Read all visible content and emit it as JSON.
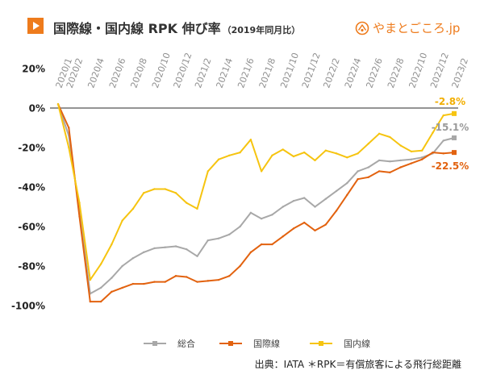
{
  "header": {
    "play_icon": "play-icon",
    "logo_icon": "yamatogokoro-logo-icon",
    "logo_text": "やまとごころ.jp"
  },
  "colors": {
    "accent": "#ee7b1c",
    "title_text": "#333333",
    "zero_line": "#555555"
  },
  "chart_data": {
    "type": "line",
    "title": "国際線・国内線 RPK 伸び率",
    "subtitle": "（2019年同月比）",
    "x": [
      "2020/1",
      "2020/2",
      "2020/3",
      "2020/4",
      "2020/5",
      "2020/6",
      "2020/7",
      "2020/8",
      "2020/9",
      "2020/10",
      "2020/11",
      "2020/12",
      "2021/1",
      "2021/2",
      "2021/3",
      "2021/4",
      "2021/5",
      "2021/6",
      "2021/7",
      "2021/8",
      "2021/9",
      "2021/10",
      "2021/11",
      "2021/12",
      "2022/1",
      "2022/2",
      "2022/3",
      "2022/4",
      "2022/5",
      "2022/6",
      "2022/7",
      "2022/8",
      "2022/9",
      "2022/10",
      "2022/11",
      "2022/12",
      "2023/1",
      "2023/2"
    ],
    "x_tick_labels": [
      "2020/1",
      "2020/2",
      "2020/4",
      "2020/6",
      "2020/8",
      "2020/10",
      "2020/12",
      "2021/2",
      "2021/4",
      "2021/6",
      "2021/8",
      "2021/10",
      "2021/12",
      "2022/2",
      "2022/4",
      "2022/6",
      "2022/8",
      "2022/10",
      "2022/12",
      "2023/2"
    ],
    "y_tick_labels": [
      "20%",
      "0%",
      "-20%",
      "-40%",
      "-60%",
      "-80%",
      "-100%"
    ],
    "ylim": [
      -100,
      20
    ],
    "grid": false,
    "zero_line": true,
    "legend_position": "bottom",
    "series": [
      {
        "name": "総合",
        "color": "#a8a8a8",
        "label_color": "#9a9a9a",
        "values": [
          2,
          -14,
          -52,
          -94,
          -91,
          -86,
          -80,
          -76,
          -73,
          -71,
          -70.5,
          -70,
          -71.5,
          -75,
          -67,
          -66,
          -64,
          -60,
          -53,
          -56,
          -54,
          -50,
          -47,
          -45.5,
          -50,
          -46,
          -42,
          -38,
          -32,
          -30,
          -26.5,
          -27,
          -26.5,
          -26,
          -25,
          -23,
          -16.5,
          -15.1
        ],
        "end_label": "-15.1%"
      },
      {
        "name": "国際線",
        "color": "#e2620f",
        "label_color": "#e2620f",
        "values": [
          2,
          -10,
          -55,
          -98,
          -98,
          -93,
          -91,
          -89,
          -89,
          -88,
          -88,
          -85,
          -85.5,
          -88,
          -87.5,
          -87,
          -85,
          -80,
          -73,
          -69,
          -69,
          -65,
          -61,
          -58,
          -62,
          -59,
          -52,
          -44,
          -36,
          -35,
          -32,
          -32.6,
          -30,
          -28,
          -26,
          -22.5,
          -23,
          -22.5
        ],
        "end_label": "-22.5%"
      },
      {
        "name": "国内線",
        "color": "#f6c410",
        "label_color": "#f2ae00",
        "values": [
          2,
          -20,
          -48,
          -87,
          -79,
          -69,
          -57,
          -51,
          -43,
          -41,
          -41,
          -43,
          -48,
          -51,
          -32,
          -26,
          -24,
          -22.5,
          -16,
          -32,
          -24,
          -21,
          -24.5,
          -22.5,
          -26.5,
          -21.5,
          -23,
          -25,
          -23,
          -18,
          -13,
          -14.7,
          -19,
          -22,
          -21.5,
          -12.5,
          -3.7,
          -2.8
        ],
        "end_label": "-2.8%"
      }
    ]
  },
  "footer": {
    "source": "出典：IATA ＊RPK＝有償旅客による飛行総距離"
  }
}
